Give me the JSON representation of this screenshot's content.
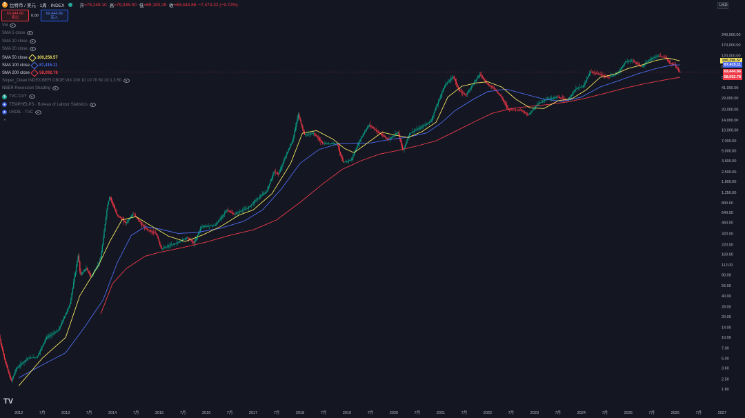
{
  "header": {
    "symbol_icon": "bitcoin-icon",
    "title": "比特币 / 美元 · 1周 · INDEX",
    "open_label": "开",
    "open_value": "=78,249.10",
    "high_label": "高",
    "high_value": "=79,335.00",
    "low_label": "低",
    "low_value": "=69,100.25",
    "close_label": "收",
    "close_value": "=69,444.86",
    "change": "−7,474.32 (−9.72%)"
  },
  "trade": {
    "sell_price": "69,444.86",
    "sell_label": "卖出",
    "spread": "0.00",
    "buy_price": "69,444.86",
    "buy_label": "买入"
  },
  "currency": "USD",
  "indicators": [
    {
      "label": "Vol",
      "value": "",
      "active": false
    },
    {
      "label": "SMA 5 close",
      "value": "",
      "active": false
    },
    {
      "label": "SMA 10 close",
      "value": "",
      "active": false
    },
    {
      "label": "SMA 20 close",
      "value": "",
      "active": false
    },
    {
      "label": "SMA 50 close",
      "value": "100,256.57",
      "active": true,
      "color": "#f5e663"
    },
    {
      "label": "SMA 100 close",
      "value": "87,415.11",
      "active": true,
      "color": "#4f6cf0"
    },
    {
      "label": "SMA 200 close",
      "value": "58,092.78",
      "active": true,
      "color": "#ef3b4a"
    },
    {
      "label": "Sniper_Clean INDEX:BEFI CBOE:VIX 200 10 10 70 60 20 1.3 50",
      "value": "",
      "active": false
    },
    {
      "label": "NBER Recession Shading",
      "value": "",
      "active": false
    },
    {
      "label": "TVC:DXY",
      "value": "",
      "active": false,
      "icon": "dollar-icon"
    },
    {
      "label": "TEMPHELPS · Bureau of Labour Statistics",
      "value": "",
      "active": false,
      "icon": "us-flag-icon"
    },
    {
      "label": "USOIL · TVC",
      "value": "",
      "active": false,
      "icon": "us-flag-icon"
    }
  ],
  "chart_data": {
    "type": "candlestick",
    "scale": "log",
    "grid": false,
    "ylim": [
      1.3,
      400000
    ],
    "xlim": [
      2011.6,
      2026.9
    ],
    "y_ticks": [
      "240,000.00",
      "170,000.00",
      "120,000.00",
      "84,000.00",
      "58,000.00",
      "41,000.00",
      "29,000.00",
      "20,000.00",
      "14,000.00",
      "10,000.00",
      "7,000.00",
      "5,000.00",
      "3,600.00",
      "2,500.00",
      "1,800.00",
      "1,250.00",
      "890.00",
      "640.00",
      "460.00",
      "320.00",
      "220.00",
      "160.00",
      "112.00",
      "80.00",
      "56.00",
      "40.00",
      "28.00",
      "20.00",
      "14.00",
      "10.00",
      "7.00",
      "5.00",
      "3.60",
      "2.50",
      "1.80"
    ],
    "y_tick_values": [
      240000,
      170000,
      120000,
      84000,
      58000,
      41000,
      29000,
      20000,
      14000,
      10000,
      7000,
      5000,
      3600,
      2500,
      1800,
      1250,
      890,
      640,
      460,
      320,
      220,
      160,
      112,
      80,
      56,
      40,
      28,
      20,
      14,
      10,
      7,
      5,
      3.6,
      2.5,
      1.8
    ],
    "x_ticks": [
      {
        "t": 2011.5,
        "label": "7月"
      },
      {
        "t": 2012,
        "label": "2012"
      },
      {
        "t": 2012.5,
        "label": "7月"
      },
      {
        "t": 2013,
        "label": "2013"
      },
      {
        "t": 2013.5,
        "label": "7月"
      },
      {
        "t": 2014,
        "label": "2014"
      },
      {
        "t": 2014.5,
        "label": "7月"
      },
      {
        "t": 2015,
        "label": "2015"
      },
      {
        "t": 2015.5,
        "label": "7月"
      },
      {
        "t": 2016,
        "label": "2016"
      },
      {
        "t": 2016.5,
        "label": "7月"
      },
      {
        "t": 2017,
        "label": "2017"
      },
      {
        "t": 2017.5,
        "label": "7月"
      },
      {
        "t": 2018,
        "label": "2018"
      },
      {
        "t": 2018.5,
        "label": "7月"
      },
      {
        "t": 2019,
        "label": "2019"
      },
      {
        "t": 2019.5,
        "label": "7月"
      },
      {
        "t": 2020,
        "label": "2020"
      },
      {
        "t": 2020.5,
        "label": "7月"
      },
      {
        "t": 2021,
        "label": "2021"
      },
      {
        "t": 2021.5,
        "label": "7月"
      },
      {
        "t": 2022,
        "label": "2022"
      },
      {
        "t": 2022.5,
        "label": "7月"
      },
      {
        "t": 2023,
        "label": "2023"
      },
      {
        "t": 2023.5,
        "label": "7月"
      },
      {
        "t": 2024,
        "label": "2024"
      },
      {
        "t": 2024.5,
        "label": "7月"
      },
      {
        "t": 2025,
        "label": "2025"
      },
      {
        "t": 2025.5,
        "label": "7月"
      },
      {
        "t": 2026,
        "label": "2026"
      },
      {
        "t": 2026.5,
        "label": "7月"
      },
      {
        "t": 2027,
        "label": "2027"
      }
    ],
    "price_path": [
      [
        2011.55,
        14
      ],
      [
        2011.7,
        5
      ],
      [
        2011.85,
        2.3
      ],
      [
        2011.95,
        3.5
      ],
      [
        2012.2,
        5
      ],
      [
        2012.4,
        5.2
      ],
      [
        2012.6,
        10
      ],
      [
        2012.85,
        12.5
      ],
      [
        2013.1,
        30
      ],
      [
        2013.28,
        160
      ],
      [
        2013.32,
        80
      ],
      [
        2013.45,
        100
      ],
      [
        2013.55,
        75
      ],
      [
        2013.75,
        130
      ],
      [
        2013.9,
        800
      ],
      [
        2013.95,
        1100
      ],
      [
        2014.1,
        600
      ],
      [
        2014.3,
        450
      ],
      [
        2014.45,
        620
      ],
      [
        2014.7,
        380
      ],
      [
        2014.95,
        310
      ],
      [
        2015.05,
        190
      ],
      [
        2015.4,
        235
      ],
      [
        2015.6,
        280
      ],
      [
        2015.75,
        230
      ],
      [
        2015.9,
        400
      ],
      [
        2016.2,
        420
      ],
      [
        2016.45,
        700
      ],
      [
        2016.6,
        600
      ],
      [
        2016.9,
        750
      ],
      [
        2017.05,
        950
      ],
      [
        2017.3,
        1300
      ],
      [
        2017.45,
        2500
      ],
      [
        2017.55,
        2300
      ],
      [
        2017.7,
        4200
      ],
      [
        2017.85,
        7000
      ],
      [
        2017.97,
        17000
      ],
      [
        2018.1,
        8500
      ],
      [
        2018.3,
        9000
      ],
      [
        2018.5,
        6300
      ],
      [
        2018.8,
        6400
      ],
      [
        2018.92,
        3400
      ],
      [
        2019.1,
        3700
      ],
      [
        2019.3,
        7500
      ],
      [
        2019.48,
        12000
      ],
      [
        2019.7,
        9000
      ],
      [
        2019.9,
        7200
      ],
      [
        2020.1,
        9500
      ],
      [
        2020.2,
        5000
      ],
      [
        2020.35,
        9000
      ],
      [
        2020.6,
        11000
      ],
      [
        2020.8,
        13500
      ],
      [
        2020.95,
        25000
      ],
      [
        2021.1,
        45000
      ],
      [
        2021.28,
        60000
      ],
      [
        2021.4,
        37000
      ],
      [
        2021.55,
        32000
      ],
      [
        2021.7,
        47000
      ],
      [
        2021.85,
        65000
      ],
      [
        2022.0,
        46000
      ],
      [
        2022.15,
        40000
      ],
      [
        2022.3,
        30000
      ],
      [
        2022.45,
        20000
      ],
      [
        2022.7,
        19500
      ],
      [
        2022.88,
        16500
      ],
      [
        2023.05,
        23000
      ],
      [
        2023.25,
        28000
      ],
      [
        2023.5,
        30000
      ],
      [
        2023.7,
        26500
      ],
      [
        2023.9,
        40000
      ],
      [
        2024.05,
        43000
      ],
      [
        2024.2,
        70000
      ],
      [
        2024.45,
        62000
      ],
      [
        2024.6,
        58000
      ],
      [
        2024.8,
        68000
      ],
      [
        2024.95,
        98000
      ],
      [
        2025.1,
        100000
      ],
      [
        2025.3,
        82000
      ],
      [
        2025.5,
        108000
      ],
      [
        2025.65,
        118000
      ],
      [
        2025.8,
        112000
      ],
      [
        2025.9,
        92000
      ],
      [
        2026.0,
        88000
      ],
      [
        2026.05,
        78249
      ],
      [
        2026.1,
        69444.86
      ]
    ],
    "sma50": [
      [
        2012.0,
        2
      ],
      [
        2012.5,
        5
      ],
      [
        2013.0,
        10
      ],
      [
        2013.3,
        40
      ],
      [
        2013.7,
        110
      ],
      [
        2013.95,
        250
      ],
      [
        2014.2,
        500
      ],
      [
        2014.5,
        560
      ],
      [
        2014.8,
        420
      ],
      [
        2015.2,
        290
      ],
      [
        2015.55,
        245
      ],
      [
        2015.9,
        300
      ],
      [
        2016.3,
        400
      ],
      [
        2016.7,
        590
      ],
      [
        2017.0,
        700
      ],
      [
        2017.4,
        1200
      ],
      [
        2017.8,
        3300
      ],
      [
        2018.05,
        9000
      ],
      [
        2018.35,
        9800
      ],
      [
        2018.7,
        7400
      ],
      [
        2018.95,
        5400
      ],
      [
        2019.15,
        4700
      ],
      [
        2019.5,
        7000
      ],
      [
        2019.75,
        9300
      ],
      [
        2020.0,
        8500
      ],
      [
        2020.3,
        7800
      ],
      [
        2020.6,
        9500
      ],
      [
        2020.9,
        13000
      ],
      [
        2021.15,
        30000
      ],
      [
        2021.45,
        43000
      ],
      [
        2021.75,
        48000
      ],
      [
        2022.0,
        50000
      ],
      [
        2022.3,
        42000
      ],
      [
        2022.6,
        28000
      ],
      [
        2022.9,
        21000
      ],
      [
        2023.2,
        20500
      ],
      [
        2023.5,
        26500
      ],
      [
        2023.8,
        28500
      ],
      [
        2024.1,
        38000
      ],
      [
        2024.4,
        58000
      ],
      [
        2024.7,
        64000
      ],
      [
        2025.0,
        78000
      ],
      [
        2025.3,
        88000
      ],
      [
        2025.6,
        102000
      ],
      [
        2025.85,
        110000
      ],
      [
        2026.1,
        100256.57
      ]
    ],
    "sma100": [
      [
        2012.0,
        2.6
      ],
      [
        2012.5,
        4
      ],
      [
        2013.0,
        6
      ],
      [
        2013.4,
        14
      ],
      [
        2013.8,
        35
      ],
      [
        2014.1,
        120
      ],
      [
        2014.4,
        300
      ],
      [
        2014.7,
        400
      ],
      [
        2015.0,
        370
      ],
      [
        2015.4,
        320
      ],
      [
        2015.8,
        330
      ],
      [
        2016.3,
        380
      ],
      [
        2016.8,
        480
      ],
      [
        2017.2,
        700
      ],
      [
        2017.6,
        1400
      ],
      [
        2018.0,
        3300
      ],
      [
        2018.4,
        5200
      ],
      [
        2018.8,
        6300
      ],
      [
        2019.1,
        6400
      ],
      [
        2019.5,
        6500
      ],
      [
        2019.9,
        7300
      ],
      [
        2020.3,
        7900
      ],
      [
        2020.7,
        9100
      ],
      [
        2021.0,
        12500
      ],
      [
        2021.3,
        19000
      ],
      [
        2021.7,
        28000
      ],
      [
        2022.0,
        36000
      ],
      [
        2022.4,
        39000
      ],
      [
        2022.8,
        33000
      ],
      [
        2023.2,
        28000
      ],
      [
        2023.6,
        26000
      ],
      [
        2024.0,
        30000
      ],
      [
        2024.4,
        42000
      ],
      [
        2024.8,
        52000
      ],
      [
        2025.2,
        65000
      ],
      [
        2025.6,
        78000
      ],
      [
        2025.95,
        88000
      ],
      [
        2026.1,
        87415.11
      ]
    ],
    "sma200": [
      [
        2013.75,
        22
      ],
      [
        2014.0,
        60
      ],
      [
        2014.3,
        100
      ],
      [
        2014.7,
        150
      ],
      [
        2015.0,
        170
      ],
      [
        2015.5,
        200
      ],
      [
        2016.0,
        240
      ],
      [
        2016.5,
        300
      ],
      [
        2017.0,
        360
      ],
      [
        2017.5,
        500
      ],
      [
        2018.0,
        900
      ],
      [
        2018.5,
        1700
      ],
      [
        2018.9,
        2700
      ],
      [
        2019.3,
        3600
      ],
      [
        2019.7,
        4500
      ],
      [
        2020.1,
        5100
      ],
      [
        2020.5,
        5900
      ],
      [
        2020.9,
        7000
      ],
      [
        2021.3,
        9500
      ],
      [
        2021.7,
        13000
      ],
      [
        2022.1,
        17500
      ],
      [
        2022.5,
        20500
      ],
      [
        2022.9,
        22000
      ],
      [
        2023.3,
        23500
      ],
      [
        2023.7,
        25500
      ],
      [
        2024.1,
        29000
      ],
      [
        2024.5,
        34000
      ],
      [
        2024.9,
        40000
      ],
      [
        2025.3,
        46000
      ],
      [
        2025.7,
        52000
      ],
      [
        2026.1,
        58092.78
      ]
    ],
    "price_tags": [
      {
        "value": 100256.57,
        "label": "100,256.57",
        "bg": "#f5e663",
        "fg": "#131722"
      },
      {
        "value": 87415.11,
        "label": "87,415.11",
        "bg": "#4f6cf0",
        "fg": "#ffffff"
      },
      {
        "value": 69444.86,
        "label": "69,444.86",
        "bg": "#ef3b4a",
        "fg": "#ffffff",
        "sub": "3d 11h"
      },
      {
        "value": 58092.78,
        "label": "58,092.78",
        "bg": "#ef3b4a",
        "fg": "#ffffff"
      }
    ]
  },
  "footer": {
    "logo": "TV"
  }
}
